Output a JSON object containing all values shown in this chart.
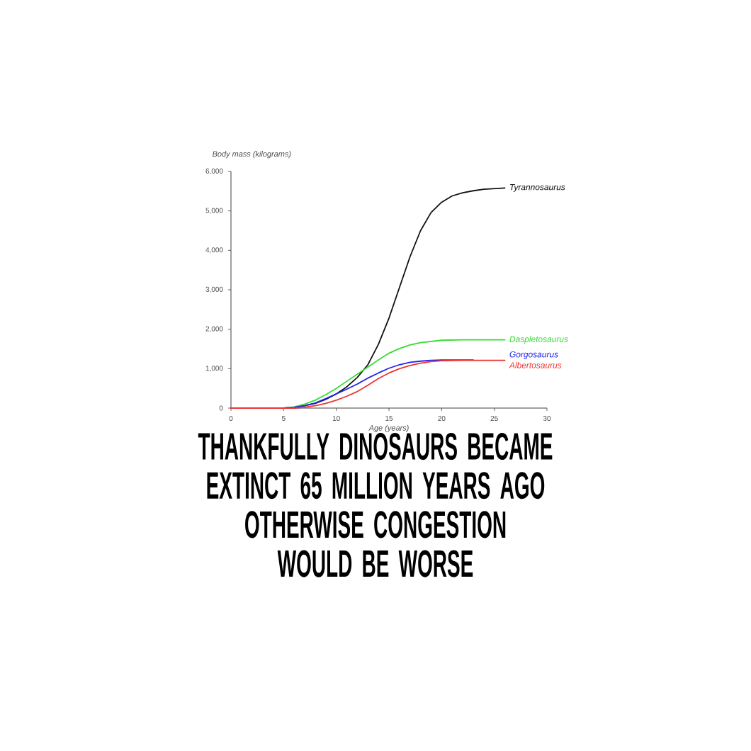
{
  "chart_data": {
    "type": "line",
    "xlabel": "Age (years)",
    "ylabel": "Body mass (kilograms)",
    "xlim": [
      0,
      30
    ],
    "ylim": [
      0,
      6000
    ],
    "xticks": [
      0,
      5,
      10,
      15,
      20,
      25,
      30
    ],
    "yticks": [
      0,
      {
        "value": 1000,
        "label": "1,000"
      },
      {
        "value": 2000,
        "label": "2,000"
      },
      {
        "value": 3000,
        "label": "3,000"
      },
      {
        "value": 4000,
        "label": "4,000"
      },
      {
        "value": 5000,
        "label": "5,000"
      },
      {
        "value": 6000,
        "label": "6,000"
      }
    ],
    "series": [
      {
        "name": "Tyrannosaurus",
        "color": "#111111",
        "x": [
          0,
          5,
          6,
          7,
          8,
          9,
          10,
          11,
          12,
          13,
          14,
          15,
          16,
          17,
          18,
          19,
          20,
          21,
          22,
          23,
          24,
          26
        ],
        "values": [
          0,
          0,
          20,
          60,
          120,
          220,
          360,
          540,
          780,
          1100,
          1620,
          2280,
          3060,
          3840,
          4500,
          4960,
          5220,
          5380,
          5460,
          5510,
          5550,
          5580
        ]
      },
      {
        "name": "Daspletosaurus",
        "color": "#33dd33",
        "x": [
          0,
          5,
          6,
          7,
          8,
          9,
          10,
          11,
          12,
          13,
          14,
          15,
          16,
          17,
          18,
          20,
          22,
          24,
          26
        ],
        "values": [
          0,
          0,
          30,
          100,
          200,
          340,
          500,
          680,
          860,
          1040,
          1220,
          1390,
          1510,
          1600,
          1660,
          1720,
          1730,
          1730,
          1730
        ]
      },
      {
        "name": "Gorgosaurus",
        "color": "#2222ee",
        "x": [
          0,
          5,
          6,
          7,
          8,
          9,
          10,
          11,
          12,
          13,
          14,
          15,
          16,
          17,
          18,
          19,
          20,
          21,
          23
        ],
        "values": [
          0,
          0,
          20,
          60,
          130,
          240,
          360,
          480,
          610,
          760,
          890,
          1010,
          1100,
          1160,
          1190,
          1210,
          1220,
          1220,
          1220
        ]
      },
      {
        "name": "Albertosaurus",
        "color": "#ee3333",
        "x": [
          0,
          5,
          6,
          7,
          8,
          9,
          10,
          11,
          12,
          13,
          14,
          15,
          16,
          17,
          18,
          19,
          20,
          22,
          24,
          26
        ],
        "values": [
          0,
          0,
          0,
          20,
          60,
          120,
          200,
          300,
          420,
          580,
          750,
          890,
          1000,
          1080,
          1140,
          1180,
          1200,
          1210,
          1210,
          1210
        ]
      }
    ],
    "annotations": [
      "THANKFULLY DINOSAURS BECAME",
      "EXTINCT 65 MILLION YEARS AGO",
      "OTHERWISE CONGESTION",
      "WOULD BE WORSE"
    ]
  }
}
